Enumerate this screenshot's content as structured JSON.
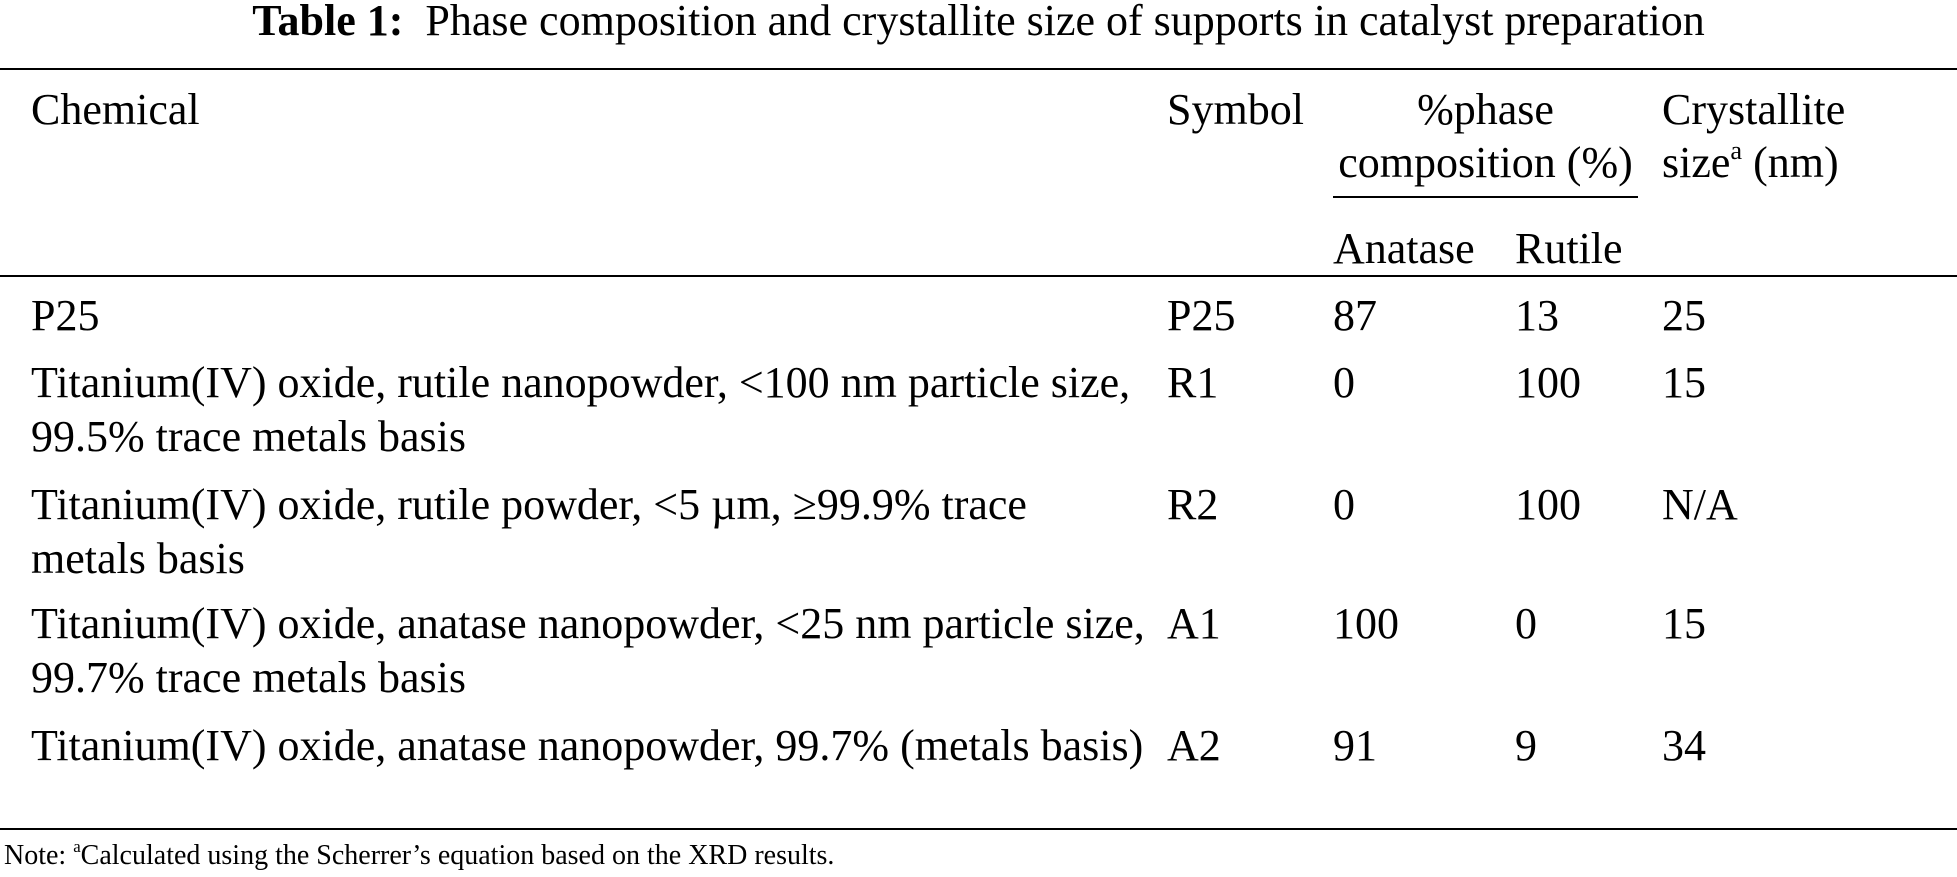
{
  "title": {
    "label": "Table 1:",
    "text": "Phase composition and crystallite size of supports in catalyst preparation"
  },
  "table": {
    "header": {
      "chemical": "Chemical",
      "symbol": "Symbol",
      "phase": [
        "%phase",
        "composition (%)"
      ],
      "anatase": "Anatase",
      "rutile": "Rutile",
      "crystallite": {
        "line1": "Crystallite",
        "text": "size",
        "sup": "a",
        "unit": "(nm)"
      }
    },
    "rows": [
      [
        "P25",
        "P25",
        "87",
        "13",
        "25"
      ],
      [
        "Titanium(IV) oxide, rutile nanopowder, <100 nm particle size, 99.5% trace metals basis",
        "R1",
        "0",
        "100",
        "15"
      ],
      [
        "Titanium(IV) oxide, rutile powder, <5 µm, ≥99.9% trace metals basis",
        "R2",
        "0",
        "100",
        "N/A"
      ],
      [
        "Titanium(IV) oxide, anatase nanopowder, <25 nm particle size, 99.7% trace metals basis",
        "A1",
        "100",
        "0",
        "15"
      ],
      [
        "Titanium(IV) oxide, anatase nanopowder, 99.7% (metals basis)",
        "A2",
        "91",
        "9",
        "34"
      ]
    ]
  },
  "note": {
    "prefix": "Note:",
    "sup": "a",
    "text": "Calculated using the Scherrer’s equation based on the XRD results."
  }
}
